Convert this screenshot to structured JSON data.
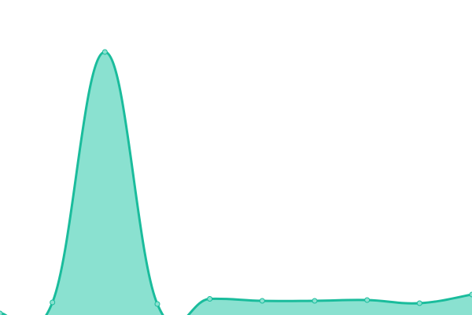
{
  "chart_data": {
    "type": "area",
    "title": "",
    "xlabel": "",
    "ylabel": "",
    "x": [
      0,
      1,
      2,
      3,
      4,
      5,
      6,
      7,
      8,
      9
    ],
    "values": [
      2,
      16,
      334,
      14,
      20.5,
      18,
      18,
      19,
      15,
      26
    ],
    "ylim": [
      0,
      400
    ],
    "grid": false,
    "legend": "none",
    "smooth": true,
    "colors": {
      "line": "#1abc9c",
      "fill": "#8ae1d0",
      "marker": "#8ae1d0"
    }
  }
}
